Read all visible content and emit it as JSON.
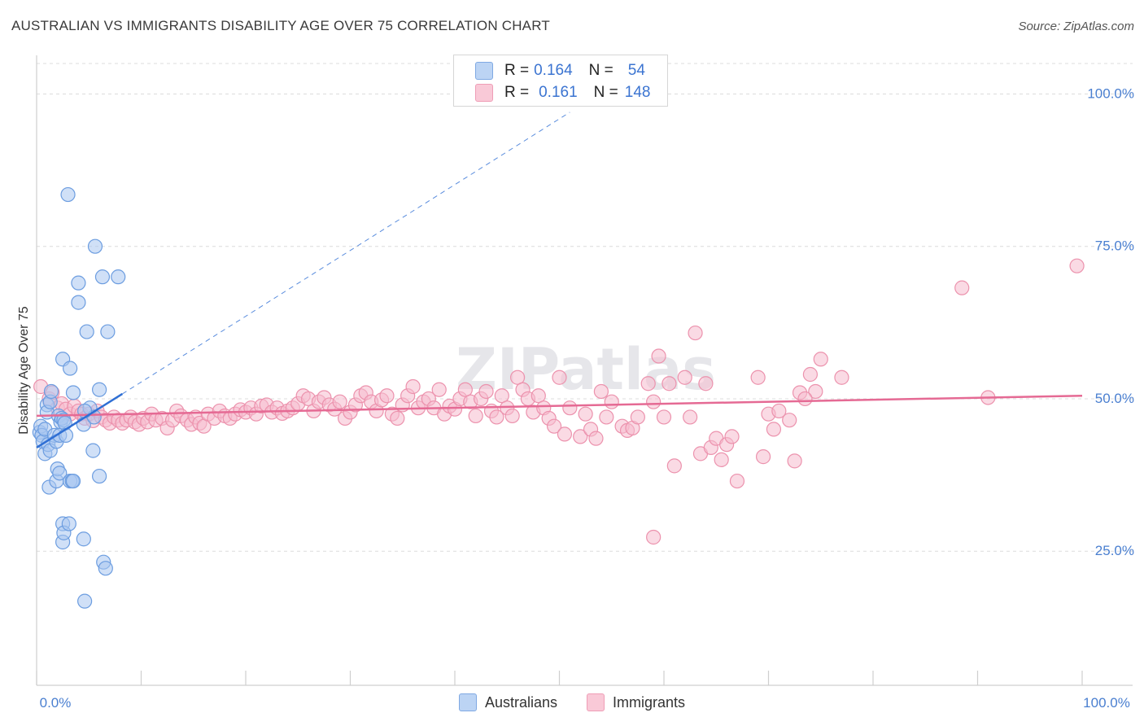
{
  "title": "AUSTRALIAN VS IMMIGRANTS DISABILITY AGE OVER 75 CORRELATION CHART",
  "source": "Source: ZipAtlas.com",
  "watermark": "ZIPatlas",
  "legend": {
    "rows": [
      {
        "r_label": "R =",
        "r_value": "0.164",
        "n_label": "N =",
        "n_value": "54"
      },
      {
        "r_label": "R =",
        "r_value": "0.161",
        "n_label": "N =",
        "n_value": "148"
      }
    ]
  },
  "bottom_legend": [
    "Australians",
    "Immigrants"
  ],
  "colors": {
    "australians_fill": "#a9c7f0",
    "australians_stroke": "#6c9de0",
    "australians_line": "#2f6fd4",
    "immigrants_fill": "#f6bccd",
    "immigrants_stroke": "#ec92ad",
    "immigrants_line": "#e56a94",
    "axis_text": "#4a7fd0"
  },
  "chart_data": {
    "type": "scatter",
    "title": "AUSTRALIAN VS IMMIGRANTS DISABILITY AGE OVER 75 CORRELATION CHART",
    "xlabel": "",
    "ylabel": "Disability Age Over 75",
    "xlim": [
      0,
      100
    ],
    "ylim": [
      3,
      105
    ],
    "x_tick_labels": [
      "0.0%",
      "100.0%"
    ],
    "y_ticks": [
      25,
      50,
      75,
      100
    ],
    "y_tick_labels": [
      "25.0%",
      "50.0%",
      "75.0%",
      "100.0%"
    ],
    "series": [
      {
        "name": "Australians",
        "R": 0.164,
        "N": 54,
        "trend": {
          "x": [
            0,
            8.2
          ],
          "y": [
            42.0,
            50.8
          ]
        },
        "trend_extension": {
          "x": [
            8.2,
            51
          ],
          "y": [
            50.8,
            97
          ]
        },
        "points": [
          [
            0.3,
            44.5
          ],
          [
            0.4,
            45.5
          ],
          [
            0.5,
            44.0
          ],
          [
            0.6,
            43.0
          ],
          [
            0.8,
            45.0
          ],
          [
            0.8,
            41.0
          ],
          [
            1.0,
            49.0
          ],
          [
            1.0,
            47.8
          ],
          [
            1.1,
            42.5
          ],
          [
            1.2,
            35.5
          ],
          [
            1.3,
            41.5
          ],
          [
            1.3,
            49.5
          ],
          [
            1.4,
            51.2
          ],
          [
            1.7,
            44.0
          ],
          [
            1.9,
            43.0
          ],
          [
            1.9,
            36.5
          ],
          [
            2.0,
            38.5
          ],
          [
            2.1,
            47.2
          ],
          [
            2.2,
            37.8
          ],
          [
            2.2,
            44.0
          ],
          [
            2.3,
            46.2
          ],
          [
            2.4,
            46.8
          ],
          [
            2.5,
            26.5
          ],
          [
            2.5,
            29.5
          ],
          [
            2.5,
            56.5
          ],
          [
            2.6,
            28.0
          ],
          [
            2.6,
            46.5
          ],
          [
            2.7,
            46.0
          ],
          [
            2.8,
            44.0
          ],
          [
            3.0,
            83.5
          ],
          [
            3.1,
            29.5
          ],
          [
            3.2,
            55.0
          ],
          [
            3.2,
            36.5
          ],
          [
            3.4,
            36.5
          ],
          [
            3.5,
            36.5
          ],
          [
            3.5,
            51.0
          ],
          [
            4.0,
            69.0
          ],
          [
            4.0,
            65.8
          ],
          [
            4.5,
            27.0
          ],
          [
            4.5,
            45.8
          ],
          [
            4.6,
            16.8
          ],
          [
            4.8,
            61.0
          ],
          [
            5.1,
            48.5
          ],
          [
            5.4,
            41.5
          ],
          [
            5.5,
            47.0
          ],
          [
            5.6,
            75.0
          ],
          [
            6.0,
            37.3
          ],
          [
            6.0,
            51.5
          ],
          [
            6.3,
            70.0
          ],
          [
            6.4,
            23.2
          ],
          [
            6.6,
            22.2
          ],
          [
            6.8,
            61.0
          ],
          [
            7.8,
            70.0
          ],
          [
            4.6,
            48.0
          ]
        ]
      },
      {
        "name": "Immigrants",
        "R": 0.161,
        "N": 148,
        "trend": {
          "x": [
            0,
            100
          ],
          "y": [
            47.2,
            50.5
          ]
        },
        "points": [
          [
            0.4,
            52.0
          ],
          [
            1.2,
            50.0
          ],
          [
            1.5,
            51.0
          ],
          [
            2.0,
            48.5
          ],
          [
            2.4,
            49.2
          ],
          [
            2.8,
            48.3
          ],
          [
            3.2,
            47.5
          ],
          [
            3.6,
            48.8
          ],
          [
            4.0,
            48.0
          ],
          [
            4.3,
            47.5
          ],
          [
            4.6,
            46.8
          ],
          [
            5.0,
            47.5
          ],
          [
            5.4,
            46.4
          ],
          [
            5.8,
            48.0
          ],
          [
            6.2,
            47.0
          ],
          [
            6.6,
            46.5
          ],
          [
            7.0,
            46.0
          ],
          [
            7.4,
            47.0
          ],
          [
            7.8,
            46.5
          ],
          [
            8.2,
            46.0
          ],
          [
            8.6,
            46.5
          ],
          [
            9.0,
            47.0
          ],
          [
            9.4,
            46.2
          ],
          [
            9.8,
            45.8
          ],
          [
            10.2,
            46.8
          ],
          [
            10.6,
            46.2
          ],
          [
            11.0,
            47.5
          ],
          [
            11.4,
            46.5
          ],
          [
            12.0,
            46.8
          ],
          [
            12.5,
            45.2
          ],
          [
            13.0,
            46.5
          ],
          [
            13.4,
            48.0
          ],
          [
            13.8,
            47.2
          ],
          [
            14.4,
            46.5
          ],
          [
            14.8,
            45.8
          ],
          [
            15.2,
            47.0
          ],
          [
            15.6,
            46.0
          ],
          [
            16.0,
            45.5
          ],
          [
            16.4,
            47.5
          ],
          [
            17.0,
            46.8
          ],
          [
            17.5,
            48.0
          ],
          [
            18.0,
            47.2
          ],
          [
            18.5,
            46.8
          ],
          [
            19.0,
            47.5
          ],
          [
            19.5,
            48.2
          ],
          [
            20.0,
            47.8
          ],
          [
            20.5,
            48.5
          ],
          [
            21.0,
            47.5
          ],
          [
            21.5,
            48.8
          ],
          [
            22.0,
            49.0
          ],
          [
            22.5,
            47.8
          ],
          [
            23.0,
            48.5
          ],
          [
            23.5,
            47.6
          ],
          [
            24.0,
            48.0
          ],
          [
            24.5,
            48.5
          ],
          [
            25.0,
            49.2
          ],
          [
            25.5,
            50.5
          ],
          [
            26.0,
            50.0
          ],
          [
            26.5,
            48.0
          ],
          [
            27.0,
            49.5
          ],
          [
            27.5,
            50.2
          ],
          [
            28.0,
            49.0
          ],
          [
            28.5,
            48.3
          ],
          [
            29.0,
            49.5
          ],
          [
            29.5,
            46.8
          ],
          [
            30.0,
            47.8
          ],
          [
            30.5,
            49.0
          ],
          [
            31.0,
            50.5
          ],
          [
            31.5,
            51.0
          ],
          [
            32.0,
            49.5
          ],
          [
            32.5,
            48.0
          ],
          [
            33.0,
            49.8
          ],
          [
            33.5,
            50.5
          ],
          [
            34.0,
            47.5
          ],
          [
            34.5,
            46.8
          ],
          [
            35.0,
            49.0
          ],
          [
            35.5,
            50.5
          ],
          [
            36.0,
            52.0
          ],
          [
            36.5,
            48.5
          ],
          [
            37.0,
            49.5
          ],
          [
            37.5,
            50.0
          ],
          [
            38.0,
            48.5
          ],
          [
            38.5,
            51.5
          ],
          [
            39.0,
            47.5
          ],
          [
            39.5,
            48.8
          ],
          [
            40.0,
            48.3
          ],
          [
            40.5,
            50.0
          ],
          [
            41.0,
            51.5
          ],
          [
            41.5,
            49.5
          ],
          [
            42.0,
            47.2
          ],
          [
            42.5,
            50.0
          ],
          [
            43.0,
            51.2
          ],
          [
            43.5,
            48.0
          ],
          [
            44.0,
            47.0
          ],
          [
            44.5,
            50.5
          ],
          [
            45.0,
            48.5
          ],
          [
            45.5,
            47.2
          ],
          [
            46.0,
            53.5
          ],
          [
            46.5,
            51.5
          ],
          [
            47.0,
            50.0
          ],
          [
            47.5,
            47.8
          ],
          [
            48.0,
            50.5
          ],
          [
            48.5,
            48.5
          ],
          [
            49.0,
            46.8
          ],
          [
            49.5,
            45.5
          ],
          [
            50.0,
            53.5
          ],
          [
            50.5,
            44.2
          ],
          [
            51.0,
            48.5
          ],
          [
            52.0,
            43.8
          ],
          [
            52.5,
            47.5
          ],
          [
            53.0,
            45.0
          ],
          [
            53.5,
            43.5
          ],
          [
            54.0,
            51.2
          ],
          [
            54.5,
            47.0
          ],
          [
            55.0,
            49.5
          ],
          [
            56.0,
            45.5
          ],
          [
            56.5,
            44.8
          ],
          [
            57.0,
            45.2
          ],
          [
            57.5,
            47.0
          ],
          [
            58.5,
            52.5
          ],
          [
            59.0,
            49.5
          ],
          [
            59.5,
            57.0
          ],
          [
            60.0,
            47.0
          ],
          [
            60.5,
            52.5
          ],
          [
            61.0,
            39.0
          ],
          [
            62.0,
            53.5
          ],
          [
            62.5,
            47.0
          ],
          [
            63.0,
            60.8
          ],
          [
            63.5,
            41.0
          ],
          [
            64.0,
            52.5
          ],
          [
            64.5,
            42.0
          ],
          [
            65.0,
            43.5
          ],
          [
            65.5,
            40.0
          ],
          [
            66.0,
            42.5
          ],
          [
            66.5,
            43.8
          ],
          [
            67.0,
            36.5
          ],
          [
            69.0,
            53.5
          ],
          [
            69.5,
            40.5
          ],
          [
            70.0,
            47.5
          ],
          [
            70.5,
            45.0
          ],
          [
            71.0,
            48.0
          ],
          [
            72.0,
            46.5
          ],
          [
            72.5,
            39.8
          ],
          [
            73.0,
            51.0
          ],
          [
            74.0,
            54.0
          ],
          [
            74.5,
            51.2
          ],
          [
            75.0,
            56.5
          ],
          [
            77.0,
            53.5
          ],
          [
            59.0,
            27.3
          ],
          [
            88.5,
            68.2
          ],
          [
            91.0,
            50.2
          ],
          [
            99.5,
            71.8
          ],
          [
            73.5,
            50.0
          ]
        ]
      }
    ]
  }
}
